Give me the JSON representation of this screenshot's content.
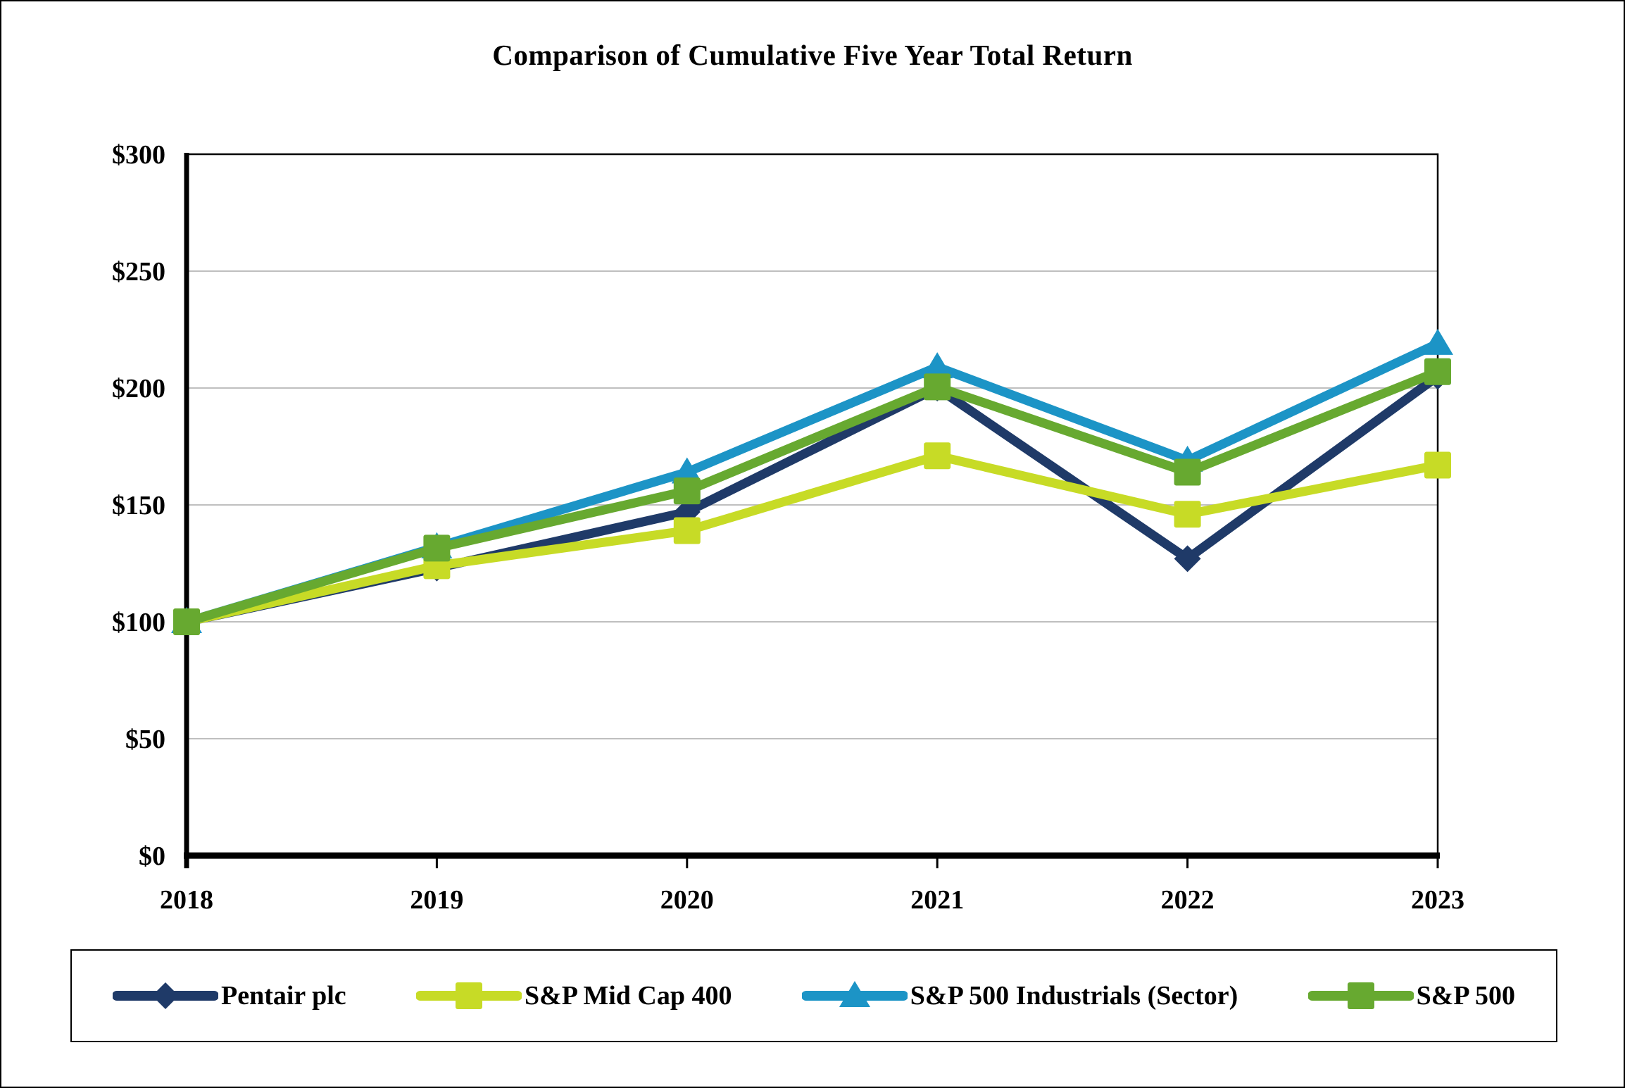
{
  "page": {
    "background": "#FFFFFF",
    "border_color": "#000000"
  },
  "chart_data": {
    "type": "line",
    "title": "Comparison of Cumulative Five Year Total Return",
    "categories": [
      "2018",
      "2019",
      "2020",
      "2021",
      "2022",
      "2023"
    ],
    "series": [
      {
        "name": "Pentair plc",
        "color": "#1F3A68",
        "marker": "diamond",
        "values": [
          100,
          123,
          147,
          200,
          127,
          205
        ]
      },
      {
        "name": "S&P Mid Cap 400",
        "color": "#C7DB26",
        "marker": "square",
        "values": [
          100,
          124,
          139,
          171,
          146,
          167
        ]
      },
      {
        "name": "S&P 500 Industrials (Sector)",
        "color": "#1C94C6",
        "marker": "triangle",
        "values": [
          100,
          132,
          164,
          209,
          169,
          219
        ]
      },
      {
        "name": "S&P 500",
        "color": "#67A930",
        "marker": "square",
        "values": [
          100,
          131.5,
          156,
          200.5,
          164,
          207
        ]
      }
    ],
    "yticks": [
      {
        "label": "$0",
        "value": 0
      },
      {
        "label": "$50",
        "value": 50
      },
      {
        "label": "$100",
        "value": 100
      },
      {
        "label": "$150",
        "value": 150
      },
      {
        "label": "$200",
        "value": 200
      },
      {
        "label": "$250",
        "value": 250
      },
      {
        "label": "$300",
        "value": 300
      }
    ],
    "ylim": [
      0,
      300
    ],
    "xlabel": "",
    "ylabel": "",
    "grid": true,
    "grid_color": "#BFBFBF",
    "axis_color": "#000000",
    "legend_position": "bottom"
  }
}
